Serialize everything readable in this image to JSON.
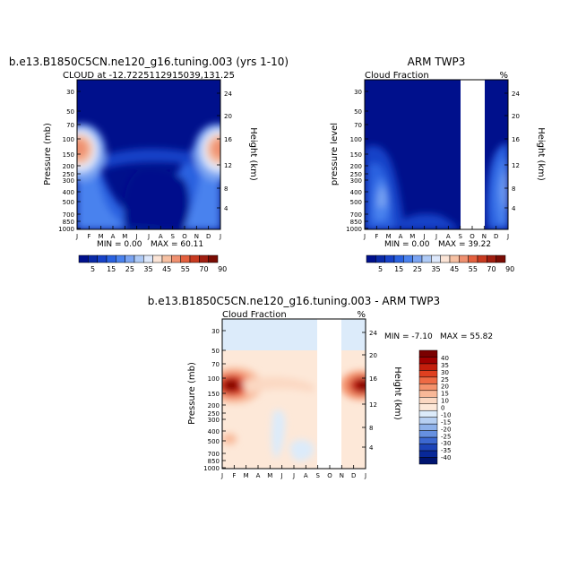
{
  "chart_data": [
    {
      "type": "heatmap",
      "title": "b.e13.B1850C5CN.ne120_g16.tuning.003 (yrs 1-10)",
      "subtitle": "CLOUD at -12.7225112915039,131.25",
      "variable_label": "",
      "ylabel": "Pressure (mb)",
      "ylabel_right": "Height (km)",
      "months": [
        "J",
        "F",
        "M",
        "A",
        "M",
        "J",
        "J",
        "A",
        "S",
        "O",
        "N",
        "D",
        "J"
      ],
      "pressure_ticks": [
        "30",
        "50",
        "70",
        "100",
        "150",
        "200",
        "250",
        "300",
        "400",
        "500",
        "700",
        "850",
        "1000"
      ],
      "height_ticks": [
        "24",
        "20",
        "16",
        "12",
        "8",
        "4"
      ],
      "min_label": "MIN =    0.00",
      "max_label": "MAX =   60.11",
      "min": 0.0,
      "max": 60.11,
      "colorbar_labels": [
        "5",
        "15",
        "25",
        "35",
        "45",
        "55",
        "70",
        "90"
      ]
    },
    {
      "type": "heatmap",
      "title": "ARM TWP3",
      "subtitle": "",
      "variable_label": "Cloud Fraction",
      "unit_label": "%",
      "ylabel": "pressure level",
      "ylabel_right": "Height (km)",
      "months": [
        "J",
        "F",
        "M",
        "A",
        "M",
        "J",
        "J",
        "A",
        "S",
        "O",
        "N",
        "D",
        "J"
      ],
      "pressure_ticks": [
        "30",
        "50",
        "70",
        "100",
        "150",
        "200",
        "250",
        "300",
        "400",
        "500",
        "700",
        "850",
        "1000"
      ],
      "height_ticks": [
        "24",
        "20",
        "16",
        "12",
        "8",
        "4"
      ],
      "min_label": "MIN =    0.00",
      "max_label": "MAX =   39.22",
      "min": 0.0,
      "max": 39.22,
      "missing_months": [
        "O",
        "N"
      ],
      "colorbar_labels": [
        "5",
        "15",
        "25",
        "35",
        "45",
        "55",
        "70",
        "90"
      ]
    },
    {
      "type": "heatmap",
      "title": "b.e13.B1850C5CN.ne120_g16.tuning.003 - ARM TWP3",
      "subtitle": "",
      "variable_label": "Cloud Fraction",
      "unit_label": "%",
      "ylabel": "Pressure (mb)",
      "ylabel_right": "Height (km)",
      "months": [
        "J",
        "F",
        "M",
        "A",
        "M",
        "J",
        "J",
        "A",
        "S",
        "O",
        "N",
        "D",
        "J"
      ],
      "pressure_ticks": [
        "30",
        "50",
        "70",
        "100",
        "150",
        "200",
        "250",
        "300",
        "400",
        "500",
        "700",
        "850",
        "1000"
      ],
      "height_ticks": [
        "24",
        "20",
        "16",
        "12",
        "8",
        "4"
      ],
      "min_label": "MIN =   -7.10",
      "max_label": "MAX =   55.82",
      "min": -7.1,
      "max": 55.82,
      "missing_months": [
        "O",
        "N"
      ],
      "colorbar_labels": [
        "40",
        "35",
        "30",
        "25",
        "20",
        "15",
        "10",
        "0",
        "-10",
        "-15",
        "-20",
        "-25",
        "-30",
        "-35",
        "-40"
      ]
    }
  ],
  "colors": {
    "seq": [
      "#00108c",
      "#0a2aa8",
      "#1742c8",
      "#2a62e0",
      "#4a82ee",
      "#7aa4f2",
      "#aecaf6",
      "#dde8fb",
      "#fbe4d6",
      "#f6c0a2",
      "#ef9070",
      "#e4603e",
      "#c83a20",
      "#a01e10",
      "#7a0c04"
    ],
    "div": [
      "#7a0000",
      "#a00000",
      "#c41e0c",
      "#df4020",
      "#ee6a44",
      "#f4926c",
      "#f8b898",
      "#fbd8c2",
      "#fde8d8",
      "#dcebfa",
      "#b6cff2",
      "#8eb1ea",
      "#6690e0",
      "#3c68d0",
      "#1c44b8",
      "#082898",
      "#001470"
    ]
  }
}
